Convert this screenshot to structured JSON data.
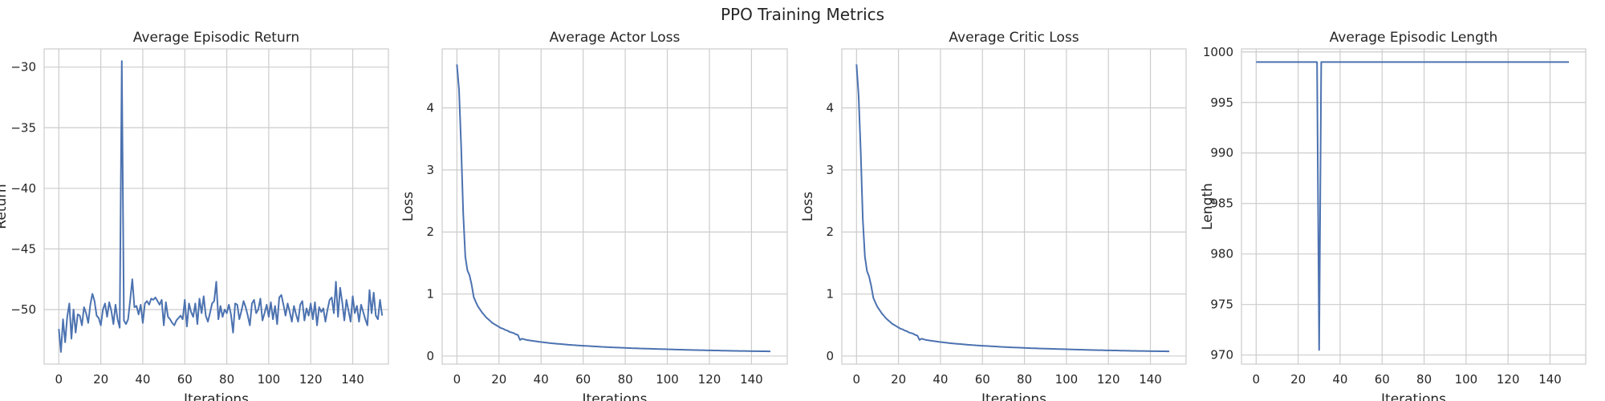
{
  "figure": {
    "suptitle": "PPO Training Metrics",
    "line_color": "#4c72b0"
  },
  "chart_data": [
    {
      "type": "line",
      "title": "Average Episodic Return",
      "xlabel": "Iterations",
      "ylabel": "Return",
      "xlim": [
        -7,
        157
      ],
      "ylim": [
        -54.5,
        -28.5
      ],
      "xticks": [
        0,
        20,
        40,
        60,
        80,
        100,
        120,
        140
      ],
      "yticks": [
        -50,
        -45,
        -40,
        -35,
        -30
      ],
      "grid": true,
      "series": [
        {
          "x_start": 0,
          "values": [
            -51.6,
            -53.5,
            -50.8,
            -52.7,
            -50.6,
            -49.5,
            -52.4,
            -50.0,
            -51.9,
            -50.4,
            -50.5,
            -51.3,
            -49.8,
            -50.3,
            -51.1,
            -49.6,
            -48.7,
            -49.3,
            -50.5,
            -50.7,
            -51.3,
            -50.0,
            -49.5,
            -50.6,
            -49.4,
            -50.1,
            -51.2,
            -49.6,
            -50.8,
            -51.5,
            -29.5,
            -50.9,
            -51.2,
            -50.8,
            -49.2,
            -47.5,
            -49.8,
            -49.7,
            -50.4,
            -49.6,
            -51.1,
            -49.5,
            -49.3,
            -49.6,
            -49.1,
            -49.2,
            -49.0,
            -49.3,
            -49.6,
            -49.2,
            -51.3,
            -49.4,
            -50.6,
            -50.8,
            -51.1,
            -51.3,
            -50.9,
            -50.7,
            -50.5,
            -50.8,
            -49.2,
            -51.4,
            -49.5,
            -50.2,
            -50.6,
            -49.5,
            -51.2,
            -49.1,
            -50.3,
            -48.9,
            -50.5,
            -51.0,
            -50.3,
            -49.5,
            -49.3,
            -47.7,
            -50.8,
            -49.7,
            -50.6,
            -50.0,
            -50.3,
            -49.6,
            -50.4,
            -51.9,
            -49.5,
            -49.6,
            -50.8,
            -50.1,
            -49.3,
            -49.8,
            -50.5,
            -51.3,
            -49.5,
            -49.2,
            -50.3,
            -50.0,
            -49.1,
            -50.9,
            -50.3,
            -49.6,
            -50.6,
            -49.4,
            -50.8,
            -49.7,
            -51.2,
            -49.0,
            -48.8,
            -49.6,
            -50.5,
            -49.5,
            -50.2,
            -51.0,
            -49.7,
            -50.4,
            -51.0,
            -49.6,
            -49.3,
            -50.9,
            -49.9,
            -50.5,
            -49.5,
            -50.8,
            -49.4,
            -51.3,
            -49.8,
            -50.2,
            -49.9,
            -51.0,
            -50.0,
            -49.2,
            -49.0,
            -50.3,
            -47.7,
            -50.6,
            -48.2,
            -49.4,
            -50.9,
            -49.2,
            -50.1,
            -51.0,
            -48.9,
            -50.3,
            -49.7,
            -51.0,
            -49.6,
            -50.2,
            -50.8,
            -51.3,
            -48.4,
            -50.3,
            -48.6,
            -50.5,
            -50.8,
            -49.2,
            -50.5
          ]
        }
      ]
    },
    {
      "type": "line",
      "title": "Average Actor Loss",
      "xlabel": "Iterations",
      "ylabel": "Loss",
      "xlim": [
        -7,
        157
      ],
      "ylim": [
        -0.13,
        4.95
      ],
      "xticks": [
        0,
        20,
        40,
        60,
        80,
        100,
        120,
        140
      ],
      "yticks": [
        0,
        1,
        2,
        3,
        4
      ],
      "grid": true,
      "series": [
        {
          "x_start": 0,
          "values": [
            4.7,
            4.3,
            3.4,
            2.3,
            1.6,
            1.38,
            1.3,
            1.15,
            0.95,
            0.87,
            0.8,
            0.75,
            0.7,
            0.66,
            0.62,
            0.59,
            0.56,
            0.53,
            0.51,
            0.49,
            0.47,
            0.45,
            0.44,
            0.42,
            0.41,
            0.39,
            0.38,
            0.37,
            0.35,
            0.34,
            0.26,
            0.28,
            0.27,
            0.26,
            0.255,
            0.25,
            0.245,
            0.24,
            0.235,
            0.23,
            0.226,
            0.222,
            0.218,
            0.214,
            0.21,
            0.206,
            0.203,
            0.2,
            0.197,
            0.194,
            0.191,
            0.188,
            0.185,
            0.182,
            0.18,
            0.177,
            0.175,
            0.172,
            0.17,
            0.168,
            0.166,
            0.164,
            0.162,
            0.16,
            0.158,
            0.156,
            0.154,
            0.152,
            0.15,
            0.148,
            0.147,
            0.145,
            0.143,
            0.142,
            0.14,
            0.139,
            0.137,
            0.136,
            0.134,
            0.133,
            0.131,
            0.13,
            0.129,
            0.127,
            0.126,
            0.125,
            0.124,
            0.122,
            0.121,
            0.12,
            0.119,
            0.118,
            0.117,
            0.116,
            0.115,
            0.114,
            0.113,
            0.112,
            0.111,
            0.11,
            0.109,
            0.108,
            0.107,
            0.106,
            0.105,
            0.104,
            0.103,
            0.102,
            0.101,
            0.1,
            0.099,
            0.098,
            0.098,
            0.097,
            0.096,
            0.095,
            0.094,
            0.094,
            0.093,
            0.092,
            0.091,
            0.091,
            0.09,
            0.089,
            0.089,
            0.088,
            0.087,
            0.087,
            0.086,
            0.085,
            0.085,
            0.084,
            0.084,
            0.083,
            0.082,
            0.082,
            0.081,
            0.081,
            0.08,
            0.08,
            0.079,
            0.079,
            0.078,
            0.078,
            0.077,
            0.077,
            0.076,
            0.076,
            0.075,
            0.075
          ]
        }
      ]
    },
    {
      "type": "line",
      "title": "Average Critic Loss",
      "xlabel": "Iterations",
      "ylabel": "Loss",
      "xlim": [
        -7,
        157
      ],
      "ylim": [
        -0.13,
        4.95
      ],
      "xticks": [
        0,
        20,
        40,
        60,
        80,
        100,
        120,
        140
      ],
      "yticks": [
        0,
        1,
        2,
        3,
        4
      ],
      "grid": true,
      "series": [
        {
          "x_start": 0,
          "values": [
            4.7,
            4.2,
            3.3,
            2.2,
            1.6,
            1.37,
            1.28,
            1.13,
            0.94,
            0.86,
            0.79,
            0.74,
            0.69,
            0.65,
            0.61,
            0.58,
            0.55,
            0.52,
            0.5,
            0.48,
            0.46,
            0.44,
            0.43,
            0.41,
            0.4,
            0.38,
            0.37,
            0.36,
            0.34,
            0.33,
            0.26,
            0.28,
            0.27,
            0.26,
            0.255,
            0.25,
            0.245,
            0.24,
            0.235,
            0.23,
            0.226,
            0.222,
            0.218,
            0.214,
            0.21,
            0.206,
            0.203,
            0.2,
            0.197,
            0.194,
            0.191,
            0.188,
            0.185,
            0.182,
            0.18,
            0.177,
            0.175,
            0.172,
            0.17,
            0.168,
            0.166,
            0.164,
            0.162,
            0.16,
            0.158,
            0.156,
            0.154,
            0.152,
            0.15,
            0.148,
            0.147,
            0.145,
            0.143,
            0.142,
            0.14,
            0.139,
            0.137,
            0.136,
            0.134,
            0.133,
            0.131,
            0.13,
            0.129,
            0.127,
            0.126,
            0.125,
            0.124,
            0.122,
            0.121,
            0.12,
            0.119,
            0.118,
            0.117,
            0.116,
            0.115,
            0.114,
            0.113,
            0.112,
            0.111,
            0.11,
            0.109,
            0.108,
            0.107,
            0.106,
            0.105,
            0.104,
            0.103,
            0.102,
            0.101,
            0.1,
            0.099,
            0.098,
            0.098,
            0.097,
            0.096,
            0.095,
            0.094,
            0.094,
            0.093,
            0.092,
            0.091,
            0.091,
            0.09,
            0.089,
            0.089,
            0.088,
            0.087,
            0.087,
            0.086,
            0.085,
            0.085,
            0.084,
            0.084,
            0.083,
            0.082,
            0.082,
            0.081,
            0.081,
            0.08,
            0.08,
            0.079,
            0.079,
            0.078,
            0.078,
            0.077,
            0.077,
            0.076,
            0.076,
            0.075,
            0.075
          ]
        }
      ]
    },
    {
      "type": "line",
      "title": "Average Episodic Length",
      "xlabel": "Iterations",
      "ylabel": "Length",
      "xlim": [
        -7,
        157
      ],
      "ylim": [
        969.1,
        1000.3
      ],
      "xticks": [
        0,
        20,
        40,
        60,
        80,
        100,
        120,
        140
      ],
      "yticks": [
        970,
        975,
        980,
        985,
        990,
        995,
        1000
      ],
      "grid": true,
      "series": [
        {
          "x_start": 0,
          "values": [
            999,
            999,
            999,
            999,
            999,
            999,
            999,
            999,
            999,
            999,
            999,
            999,
            999,
            999,
            999,
            999,
            999,
            999,
            999,
            999,
            999,
            999,
            999,
            999,
            999,
            999,
            999,
            999,
            999,
            999,
            970.5,
            999,
            999,
            999,
            999,
            999,
            999,
            999,
            999,
            999,
            999,
            999,
            999,
            999,
            999,
            999,
            999,
            999,
            999,
            999,
            999,
            999,
            999,
            999,
            999,
            999,
            999,
            999,
            999,
            999,
            999,
            999,
            999,
            999,
            999,
            999,
            999,
            999,
            999,
            999,
            999,
            999,
            999,
            999,
            999,
            999,
            999,
            999,
            999,
            999,
            999,
            999,
            999,
            999,
            999,
            999,
            999,
            999,
            999,
            999,
            999,
            999,
            999,
            999,
            999,
            999,
            999,
            999,
            999,
            999,
            999,
            999,
            999,
            999,
            999,
            999,
            999,
            999,
            999,
            999,
            999,
            999,
            999,
            999,
            999,
            999,
            999,
            999,
            999,
            999,
            999,
            999,
            999,
            999,
            999,
            999,
            999,
            999,
            999,
            999,
            999,
            999,
            999,
            999,
            999,
            999,
            999,
            999,
            999,
            999,
            999,
            999,
            999,
            999,
            999,
            999,
            999,
            999,
            999,
            999
          ]
        }
      ]
    }
  ]
}
